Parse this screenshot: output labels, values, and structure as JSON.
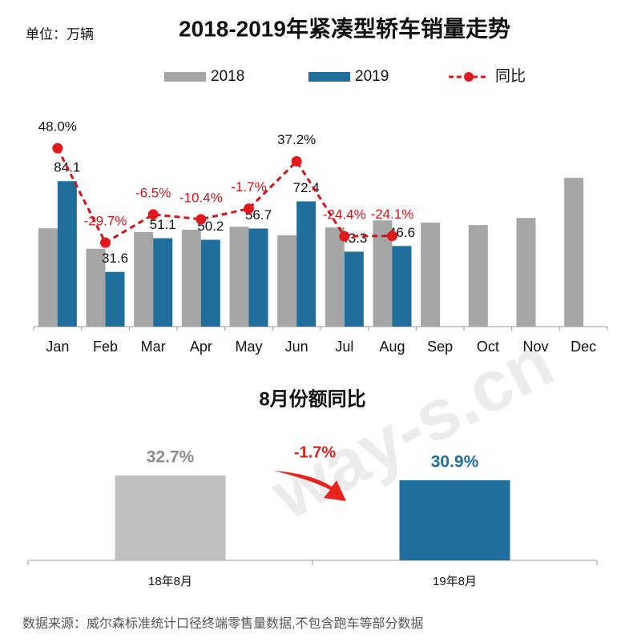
{
  "unit_note": "单位：万辆",
  "source_note": "数据来源：威尔森标准统计口径终端零售量数据,不包含跑车等部分数据",
  "watermark": "way-s.cn",
  "chart_data": [
    {
      "type": "bar",
      "title": "2018-2019年紧凑型轿车销量走势",
      "categories": [
        "Jan",
        "Feb",
        "Mar",
        "Apr",
        "May",
        "Jun",
        "Jul",
        "Aug",
        "Sep",
        "Oct",
        "Nov",
        "Dec"
      ],
      "series": [
        {
          "name": "2018",
          "color": "#a6a6a6",
          "values": [
            56.8,
            45.0,
            54.7,
            56.0,
            57.7,
            52.8,
            57.3,
            61.4,
            60.1,
            58.7,
            62.8,
            86.0
          ]
        },
        {
          "name": "2019",
          "color": "#1f6e9c",
          "values": [
            84.1,
            31.6,
            51.1,
            50.2,
            56.7,
            72.4,
            43.3,
            46.6,
            null,
            null,
            null,
            null
          ]
        },
        {
          "name": "同比",
          "type": "line",
          "axis": "y2",
          "color": "#e0191c",
          "values": [
            48.0,
            -29.7,
            -6.5,
            -10.4,
            -1.7,
            37.2,
            -24.4,
            -24.1,
            null,
            null,
            null,
            null
          ],
          "value_labels": [
            "48.0%",
            "-29.7%",
            "-6.5%",
            "-10.4%",
            "-1.7%",
            "37.2%",
            "-24.4%",
            "-24.1%",
            null,
            null,
            null,
            null
          ]
        }
      ],
      "ylim": [
        0,
        124
      ],
      "y2lim": [
        -98.7,
        77.7
      ],
      "legend": "top"
    },
    {
      "type": "bar",
      "title": "8月份额同比",
      "categories": [
        "18年8月",
        "19年8月"
      ],
      "values": [
        32.7,
        30.9
      ],
      "value_labels": [
        "32.7%",
        "30.9%"
      ],
      "colors": [
        "#bfbfbf",
        "#1f6e9c"
      ],
      "annotation": "-1.7%",
      "ylim": [
        0,
        52.5
      ]
    }
  ]
}
